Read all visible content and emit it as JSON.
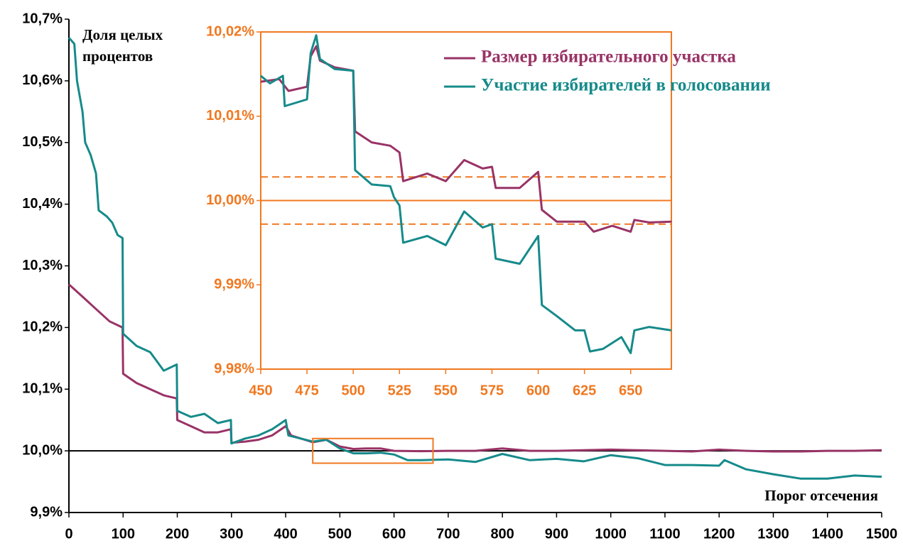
{
  "chart_data": [
    {
      "type": "line",
      "ylabel": "Доля целых процентов",
      "xlabel": "Порог отсечения",
      "xlim": [
        0,
        1500
      ],
      "xticks": [
        0,
        100,
        200,
        300,
        400,
        500,
        600,
        700,
        800,
        900,
        1000,
        1100,
        1200,
        1300,
        1400,
        1500
      ],
      "ylim": [
        9.9,
        10.7
      ],
      "yticks": [
        {
          "value": 9.9,
          "label": "9,9%"
        },
        {
          "value": 10.0,
          "label": "10,0%"
        },
        {
          "value": 10.1,
          "label": "10,1%"
        },
        {
          "value": 10.2,
          "label": "10,2%"
        },
        {
          "value": 10.3,
          "label": "10,3%"
        },
        {
          "value": 10.4,
          "label": "10,4%"
        },
        {
          "value": 10.5,
          "label": "10,5%"
        },
        {
          "value": 10.6,
          "label": "10,6%"
        },
        {
          "value": 10.7,
          "label": "10,7%"
        }
      ],
      "axis_color": "#000000",
      "reference_lines": [
        {
          "value": 10.0,
          "color": "#000000",
          "dash": "solid"
        }
      ],
      "series": [
        {
          "color": "#993366",
          "x": [
            0,
            25,
            50,
            75,
            99,
            100,
            125,
            150,
            175,
            199,
            200,
            225,
            250,
            275,
            299,
            300,
            325,
            350,
            375,
            400,
            410,
            450,
            475,
            500,
            525,
            550,
            575,
            600,
            650,
            700,
            750,
            800,
            850,
            900,
            950,
            1000,
            1050,
            1100,
            1150,
            1200,
            1250,
            1300,
            1350,
            1400,
            1450,
            1500
          ],
          "values": [
            10.27,
            10.25,
            10.23,
            10.21,
            10.2,
            10.125,
            10.11,
            10.1,
            10.09,
            10.085,
            10.05,
            10.04,
            10.03,
            10.03,
            10.035,
            10.013,
            10.015,
            10.018,
            10.025,
            10.04,
            10.025,
            10.014,
            10.018,
            10.007,
            10.003,
            10.004,
            10.004,
            10.0,
            9.9995,
            10.0,
            10.0,
            10.004,
            10.0,
            10.0,
            10.001,
            10.002,
            10.001,
            10.0,
            9.999,
            10.002,
            10.0,
            9.999,
            9.999,
            10.0,
            10.0,
            10.001
          ]
        },
        {
          "color": "#168a8a",
          "x": [
            0,
            10,
            15,
            25,
            30,
            40,
            50,
            55,
            70,
            80,
            90,
            99,
            100,
            125,
            150,
            175,
            199,
            200,
            225,
            250,
            275,
            299,
            300,
            325,
            350,
            375,
            400,
            405,
            450,
            475,
            500,
            525,
            550,
            575,
            600,
            625,
            650,
            700,
            750,
            800,
            850,
            900,
            950,
            1000,
            1050,
            1100,
            1150,
            1200,
            1210,
            1250,
            1300,
            1350,
            1400,
            1450,
            1500
          ],
          "values": [
            10.67,
            10.66,
            10.6,
            10.55,
            10.5,
            10.48,
            10.45,
            10.39,
            10.38,
            10.37,
            10.35,
            10.345,
            10.19,
            10.17,
            10.16,
            10.13,
            10.14,
            10.065,
            10.055,
            10.06,
            10.045,
            10.05,
            10.012,
            10.02,
            10.025,
            10.035,
            10.05,
            10.025,
            10.015,
            10.018,
            10.004,
            9.996,
            9.996,
            9.997,
            9.994,
            9.985,
            9.985,
            9.986,
            9.982,
            9.995,
            9.985,
            9.987,
            9.983,
            9.993,
            9.988,
            9.977,
            9.977,
            9.976,
            9.985,
            9.97,
            9.962,
            9.955,
            9.955,
            9.96,
            9.958
          ]
        }
      ]
    },
    {
      "type": "line",
      "xlim": [
        450,
        672
      ],
      "xticks": [
        450,
        475,
        500,
        525,
        550,
        575,
        600,
        625,
        650
      ],
      "ylim": [
        9.98,
        10.02
      ],
      "yticks": [
        {
          "value": 9.98,
          "label": "9,98%"
        },
        {
          "value": 9.99,
          "label": "9,99%"
        },
        {
          "value": 10.0,
          "label": "10,00%"
        },
        {
          "value": 10.01,
          "label": "10,01%"
        },
        {
          "value": 10.02,
          "label": "10,02%"
        }
      ],
      "axis_color": "#f07820",
      "legend": "top-right",
      "reference_lines": [
        {
          "value": 10.0,
          "color": "#f07820",
          "dash": "solid"
        },
        {
          "value": 10.0028,
          "color": "#f07820",
          "dash": "dashed"
        },
        {
          "value": 9.9972,
          "color": "#f07820",
          "dash": "dashed"
        }
      ],
      "series": [
        {
          "name": "Размер избирательного участка",
          "color": "#993366",
          "x": [
            450,
            460,
            465,
            475,
            477,
            480,
            482,
            490,
            500,
            501,
            510,
            520,
            525,
            527,
            540,
            550,
            560,
            570,
            575,
            577,
            590,
            600,
            602,
            610,
            625,
            630,
            640,
            650,
            652,
            660,
            672
          ],
          "values": [
            10.0141,
            10.0144,
            10.013,
            10.0135,
            10.0171,
            10.0183,
            10.0166,
            10.0158,
            10.0154,
            10.0082,
            10.0069,
            10.0065,
            10.0057,
            10.0023,
            10.0032,
            10.0023,
            10.0048,
            10.0038,
            10.004,
            10.0015,
            10.0015,
            10.0034,
            9.9989,
            9.9975,
            9.9975,
            9.9963,
            9.997,
            9.9963,
            9.9977,
            9.9974,
            9.9975
          ]
        },
        {
          "name": "Участие избирателей в голосовании",
          "color": "#168a8a",
          "x": [
            450,
            455,
            462,
            463,
            475,
            477,
            480,
            482,
            490,
            500,
            501,
            510,
            520,
            522,
            525,
            527,
            540,
            550,
            560,
            570,
            575,
            577,
            590,
            600,
            602,
            610,
            620,
            625,
            628,
            635,
            645,
            650,
            652,
            660,
            672
          ],
          "values": [
            10.0148,
            10.0139,
            10.0148,
            10.0112,
            10.012,
            10.0175,
            10.0196,
            10.0168,
            10.0156,
            10.0154,
            10.0036,
            10.0019,
            10.0017,
            10.0004,
            9.9994,
            9.995,
            9.9958,
            9.9947,
            9.9987,
            9.9968,
            9.9972,
            9.9931,
            9.9925,
            9.9958,
            9.9876,
            9.9863,
            9.9846,
            9.9846,
            9.9821,
            9.9824,
            9.9838,
            9.9819,
            9.9846,
            9.985,
            9.9846
          ]
        }
      ]
    }
  ]
}
